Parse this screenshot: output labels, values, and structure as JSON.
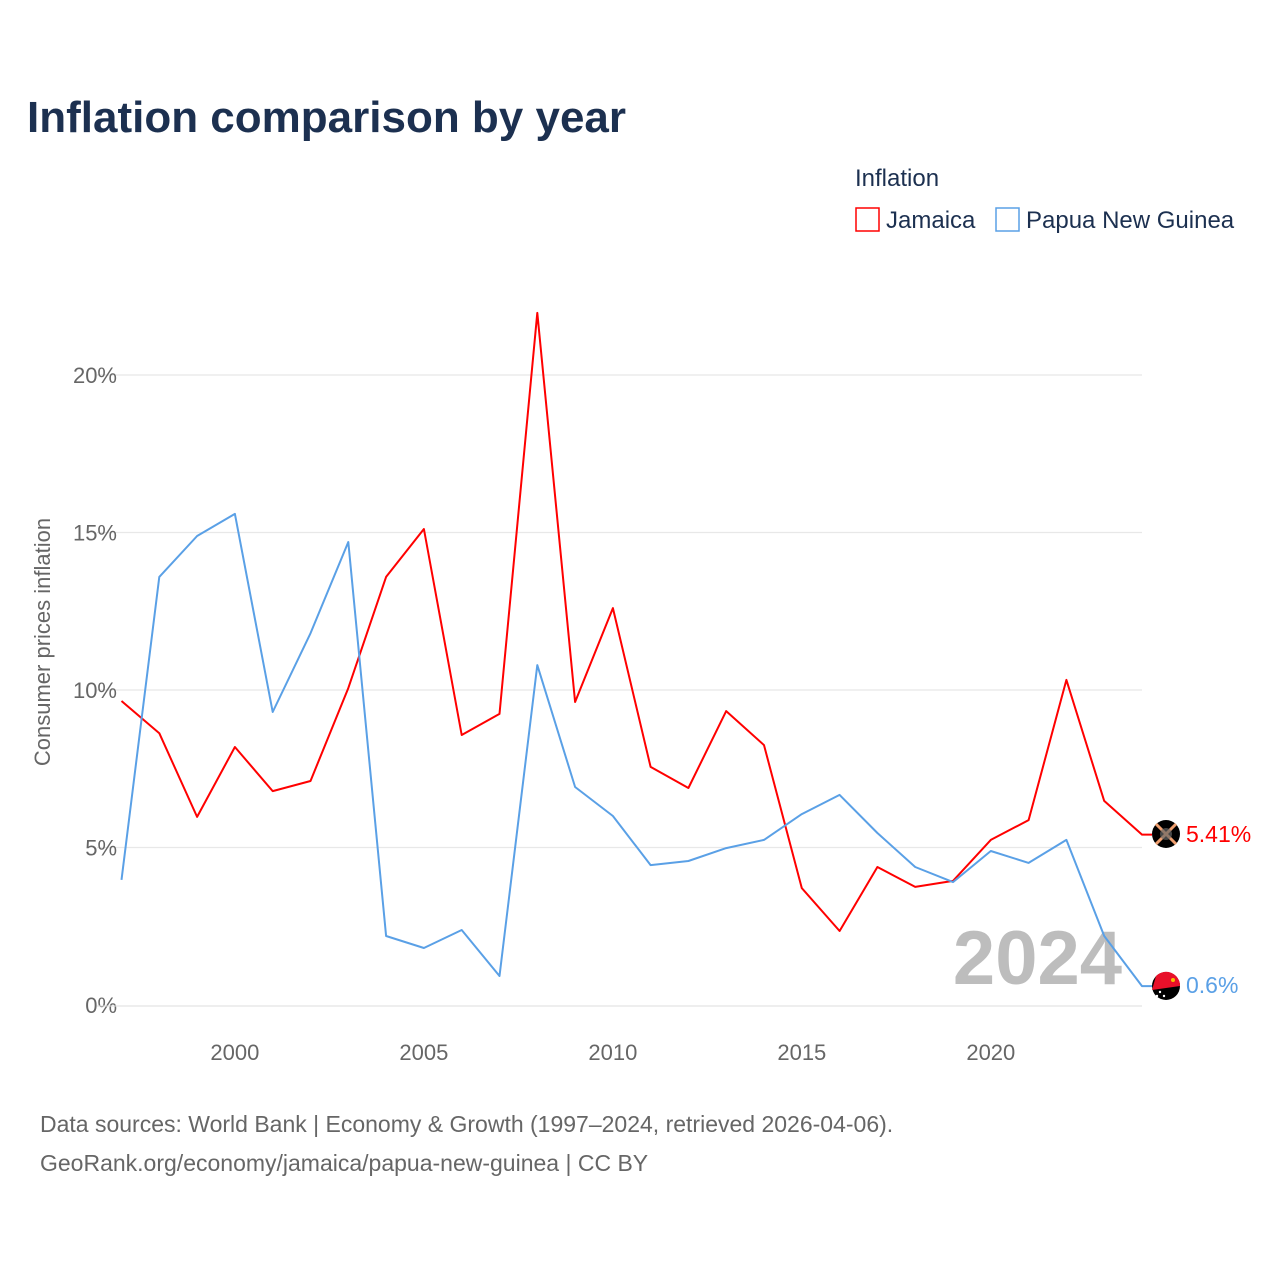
{
  "title": "Inflation comparison by year",
  "legend": {
    "title": "Inflation",
    "items": [
      {
        "label": "Jamaica",
        "color": "#ff0000"
      },
      {
        "label": "Papua New Guinea",
        "color": "#5aa0e6"
      }
    ]
  },
  "watermark_year": "2024",
  "source_line1": "Data sources: World Bank | Economy & Growth (1997–2024, retrieved 2026-04-06).",
  "source_line2": "GeoRank.org/economy/jamaica/papua-new-guinea | CC BY",
  "chart_data": {
    "type": "line",
    "title": "Inflation comparison by year",
    "xlabel": "",
    "ylabel": "Consumer prices inflation",
    "xlim": [
      1997,
      2024
    ],
    "ylim": [
      0,
      22
    ],
    "x_ticks": [
      2000,
      2005,
      2010,
      2015,
      2020
    ],
    "x_tick_labels": [
      "2000",
      "2005",
      "2010",
      "2015",
      "2020"
    ],
    "y_ticks": [
      0,
      5,
      10,
      15,
      20
    ],
    "y_tick_labels": [
      "0%",
      "5%",
      "10%",
      "15%",
      "20%"
    ],
    "grid": true,
    "legend_position": "top-right",
    "x": [
      1997,
      1998,
      1999,
      2000,
      2001,
      2002,
      2003,
      2004,
      2005,
      2006,
      2007,
      2008,
      2009,
      2010,
      2011,
      2012,
      2013,
      2014,
      2015,
      2016,
      2017,
      2018,
      2019,
      2020,
      2021,
      2022,
      2023,
      2024
    ],
    "series": [
      {
        "name": "Jamaica",
        "color": "#ff0000",
        "end_label": "5.41%",
        "values": [
          9.65,
          8.63,
          5.97,
          8.19,
          6.79,
          7.11,
          10.06,
          13.59,
          15.11,
          8.57,
          9.24,
          21.97,
          9.62,
          12.6,
          7.56,
          6.89,
          9.33,
          8.25,
          3.71,
          2.35,
          4.38,
          3.75,
          3.94,
          5.24,
          5.87,
          10.32,
          6.48,
          5.41
        ]
      },
      {
        "name": "Papua New Guinea",
        "color": "#5aa0e6",
        "end_label": "0.6%",
        "values": [
          3.97,
          13.59,
          14.89,
          15.59,
          9.3,
          11.8,
          14.7,
          2.19,
          1.81,
          2.38,
          0.92,
          10.79,
          6.92,
          6.0,
          4.44,
          4.57,
          4.98,
          5.24,
          6.06,
          6.67,
          5.46,
          4.38,
          3.9,
          4.89,
          4.51,
          5.24,
          2.19,
          0.6
        ]
      }
    ]
  }
}
